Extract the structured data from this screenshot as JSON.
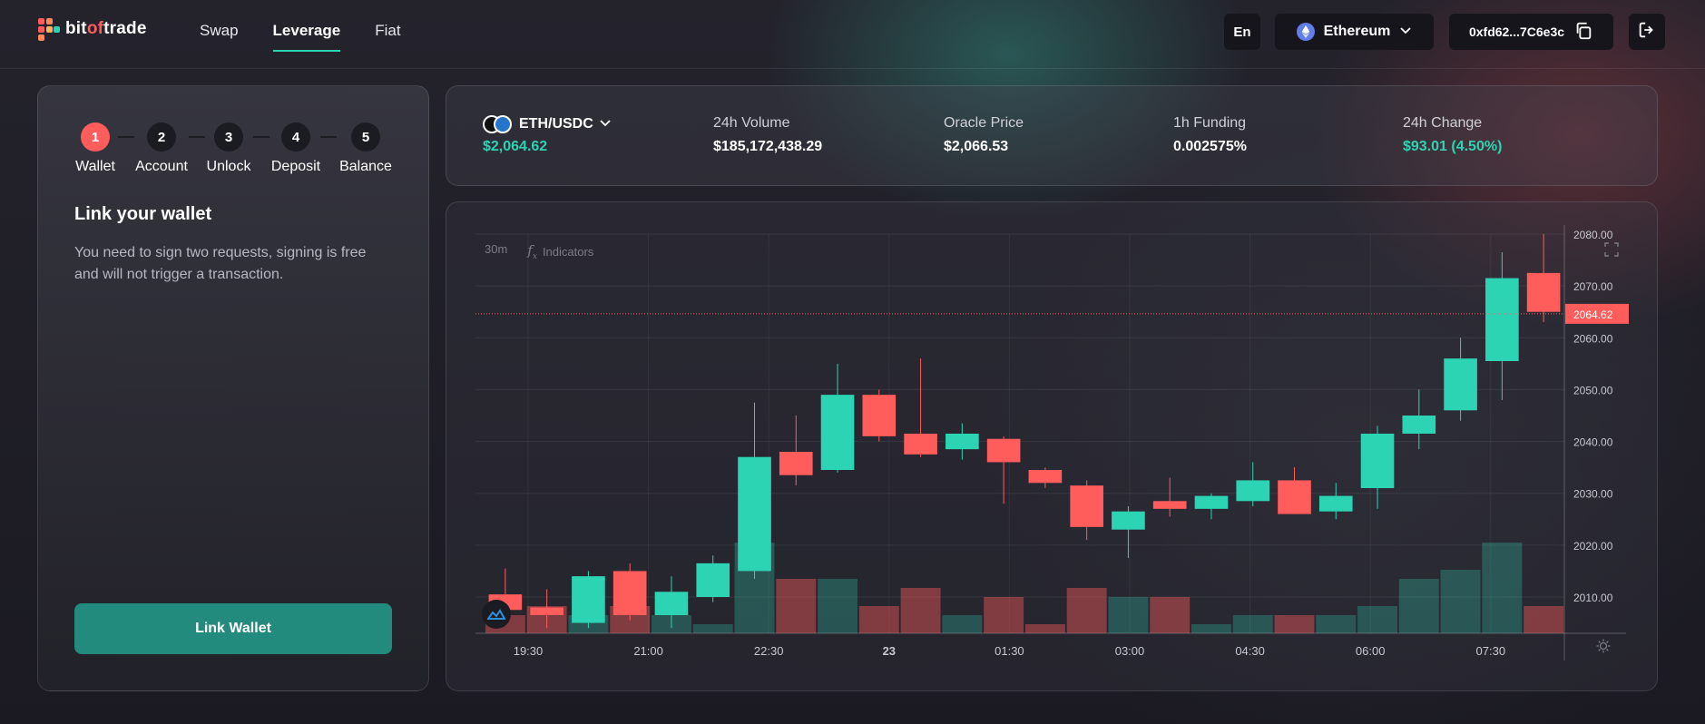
{
  "brand": {
    "prefix": "bit",
    "mid": "of",
    "suffix": "trade"
  },
  "nav": {
    "items": [
      {
        "label": "Swap"
      },
      {
        "label": "Leverage"
      },
      {
        "label": "Fiat"
      }
    ]
  },
  "header": {
    "language": "En",
    "network": "Ethereum",
    "address": "0xfd62...7C6e3c"
  },
  "onboarding": {
    "steps": [
      {
        "num": "1",
        "label": "Wallet"
      },
      {
        "num": "2",
        "label": "Account"
      },
      {
        "num": "3",
        "label": "Unlock"
      },
      {
        "num": "4",
        "label": "Deposit"
      },
      {
        "num": "5",
        "label": "Balance"
      }
    ],
    "active_step": 1,
    "title": "Link your wallet",
    "description": "You need to sign two requests, signing is free and will not trigger a transaction.",
    "button": "Link Wallet"
  },
  "ticker": {
    "pair": "ETH/USDC",
    "price": "$2,064.62",
    "volume_label": "24h Volume",
    "volume": "$185,172,438.29",
    "oracle_label": "Oracle Price",
    "oracle": "$2,066.53",
    "funding_label": "1h Funding",
    "funding": "0.002575%",
    "change_label": "24h Change",
    "change": "$93.01 (4.50%)"
  },
  "chart_toolbar": {
    "interval": "30m",
    "indicators": "Indicators"
  },
  "colors": {
    "up": "#2dd4b4",
    "down": "#ff5c5c",
    "accent": "#238a7e"
  },
  "chart_data": {
    "type": "candlestick",
    "y_ticks": [
      "2080.00",
      "2070.00",
      "2060.00",
      "2050.00",
      "2040.00",
      "2030.00",
      "2020.00",
      "2010.00"
    ],
    "ylim": [
      2003,
      2080
    ],
    "x_ticks": [
      "19:30",
      "21:00",
      "22:30",
      "23",
      "01:30",
      "03:00",
      "04:30",
      "06:00",
      "07:30"
    ],
    "last_price": "2064.62",
    "candles": [
      {
        "o": 2010.5,
        "h": 2015.5,
        "l": 2007.0,
        "c": 2007.5,
        "v": 2
      },
      {
        "o": 2008.0,
        "h": 2011.5,
        "l": 2004.0,
        "c": 2006.5,
        "v": 3
      },
      {
        "o": 2005.0,
        "h": 2015.0,
        "l": 2004.0,
        "c": 2014.0,
        "v": 2
      },
      {
        "o": 2015.0,
        "h": 2016.5,
        "l": 2005.5,
        "c": 2006.5,
        "v": 3
      },
      {
        "o": 2006.5,
        "h": 2014.0,
        "l": 2004.0,
        "c": 2011.0,
        "v": 2
      },
      {
        "o": 2010.0,
        "h": 2018.0,
        "l": 2009.0,
        "c": 2016.5,
        "v": 1
      },
      {
        "o": 2015.0,
        "h": 2047.5,
        "l": 2013.5,
        "c": 2037.0,
        "v": 10
      },
      {
        "o": 2038.0,
        "h": 2045.0,
        "l": 2031.5,
        "c": 2033.5,
        "v": 6
      },
      {
        "o": 2034.5,
        "h": 2055.0,
        "l": 2034.0,
        "c": 2049.0,
        "v": 6
      },
      {
        "o": 2049.0,
        "h": 2050.0,
        "l": 2040.0,
        "c": 2041.0,
        "v": 3
      },
      {
        "o": 2041.5,
        "h": 2056.0,
        "l": 2037.0,
        "c": 2037.5,
        "v": 5
      },
      {
        "o": 2038.5,
        "h": 2043.5,
        "l": 2036.5,
        "c": 2041.5,
        "v": 2
      },
      {
        "o": 2040.5,
        "h": 2041.0,
        "l": 2028.0,
        "c": 2036.0,
        "v": 4
      },
      {
        "o": 2034.5,
        "h": 2035.0,
        "l": 2031.0,
        "c": 2032.0,
        "v": 1
      },
      {
        "o": 2031.5,
        "h": 2032.5,
        "l": 2021.0,
        "c": 2023.5,
        "v": 5
      },
      {
        "o": 2023.0,
        "h": 2027.5,
        "l": 2017.5,
        "c": 2026.5,
        "v": 4
      },
      {
        "o": 2028.5,
        "h": 2033.0,
        "l": 2025.5,
        "c": 2027.0,
        "v": 4
      },
      {
        "o": 2027.0,
        "h": 2030.0,
        "l": 2025.0,
        "c": 2029.5,
        "v": 1
      },
      {
        "o": 2028.5,
        "h": 2036.0,
        "l": 2027.5,
        "c": 2032.5,
        "v": 2
      },
      {
        "o": 2032.5,
        "h": 2035.0,
        "l": 2026.0,
        "c": 2026.0,
        "v": 2
      },
      {
        "o": 2026.5,
        "h": 2032.0,
        "l": 2025.0,
        "c": 2029.5,
        "v": 2
      },
      {
        "o": 2031.0,
        "h": 2043.0,
        "l": 2027.0,
        "c": 2041.5,
        "v": 3
      },
      {
        "o": 2041.5,
        "h": 2050.0,
        "l": 2038.5,
        "c": 2045.0,
        "v": 6
      },
      {
        "o": 2046.0,
        "h": 2060.0,
        "l": 2044.0,
        "c": 2056.0,
        "v": 7
      },
      {
        "o": 2055.5,
        "h": 2076.5,
        "l": 2048.0,
        "c": 2071.5,
        "v": 10
      },
      {
        "o": 2072.5,
        "h": 2080.0,
        "l": 2063.0,
        "c": 2065.0,
        "v": 3
      }
    ]
  }
}
